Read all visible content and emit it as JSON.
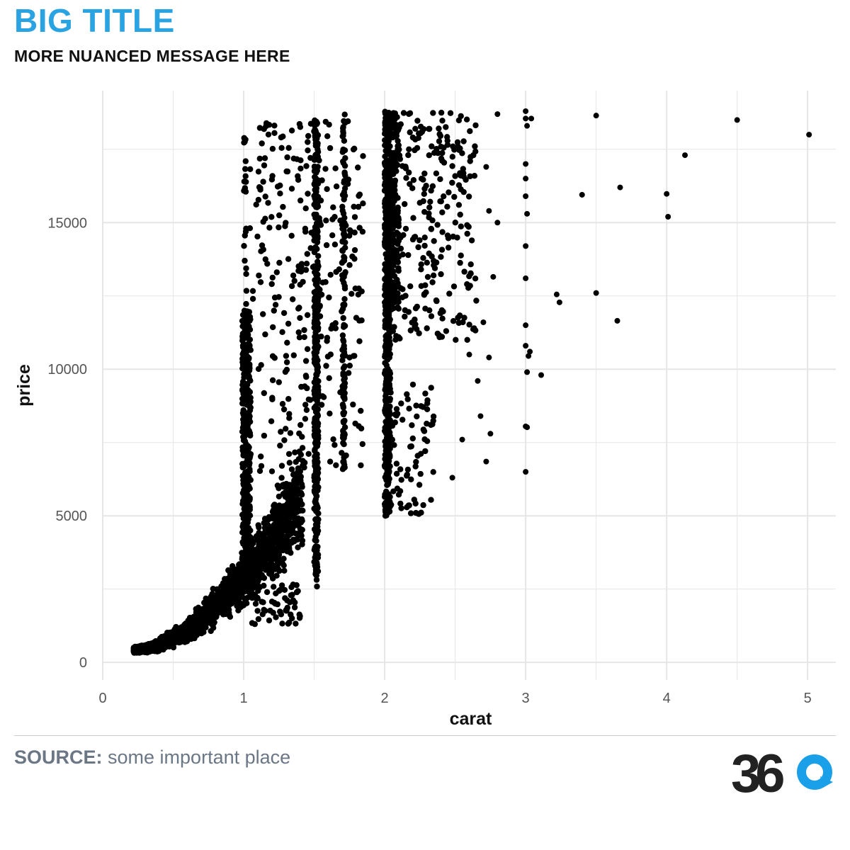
{
  "header": {
    "title": "BIG TITLE",
    "subtitle": "MORE NUANCED MESSAGE HERE"
  },
  "footer": {
    "source_label": "SOURCE:",
    "source_text": "some important place",
    "logo_text": "360"
  },
  "colors": {
    "title": "#2AA3E3",
    "points": "#000000",
    "grid": "#e6e6e6",
    "source": "#6b7784",
    "logo_dark": "#222222",
    "logo_accent": "#1AA0E8"
  },
  "chart_data": {
    "type": "scatter",
    "xlabel": "carat",
    "ylabel": "price",
    "xlim": [
      0,
      5.2
    ],
    "ylim": [
      -600,
      19500
    ],
    "xticks": [
      0,
      1,
      2,
      3,
      4,
      5
    ],
    "yticks": [
      0,
      5000,
      10000,
      15000
    ],
    "grid": true,
    "series": [
      {
        "points": [
          [
            2.8,
            18700
          ],
          [
            3.5,
            18650
          ],
          [
            4.5,
            18500
          ],
          [
            5.01,
            18000
          ],
          [
            4.13,
            17300
          ],
          [
            3.67,
            16200
          ],
          [
            3.4,
            15950
          ],
          [
            4.0,
            15980
          ],
          [
            4.01,
            15200
          ],
          [
            3.5,
            12600
          ],
          [
            3.22,
            12550
          ],
          [
            3.24,
            12280
          ],
          [
            3.65,
            11650
          ],
          [
            3.11,
            9800
          ],
          [
            3.01,
            9900
          ],
          [
            3.0,
            8050
          ],
          [
            3.01,
            8020
          ],
          [
            3.0,
            6500
          ],
          [
            2.72,
            6850
          ],
          [
            2.48,
            6300
          ],
          [
            2.75,
            7800
          ],
          [
            2.68,
            8400
          ],
          [
            2.55,
            7600
          ],
          [
            2.66,
            9600
          ],
          [
            2.74,
            10400
          ],
          [
            2.6,
            10500
          ],
          [
            2.7,
            11600
          ],
          [
            2.77,
            13150
          ],
          [
            2.74,
            15400
          ],
          [
            2.8,
            15000
          ],
          [
            2.72,
            16900
          ],
          [
            3.0,
            17000
          ],
          [
            3.0,
            15900
          ],
          [
            3.0,
            16500
          ],
          [
            3.01,
            15300
          ],
          [
            3.0,
            14200
          ],
          [
            3.0,
            13100
          ],
          [
            3.0,
            11500
          ],
          [
            3.0,
            10800
          ],
          [
            3.03,
            10600
          ],
          [
            3.02,
            10450
          ],
          [
            3.0,
            18800
          ],
          [
            3.01,
            18300
          ],
          [
            3.04,
            18550
          ],
          [
            3.0,
            18550
          ]
        ]
      }
    ]
  }
}
